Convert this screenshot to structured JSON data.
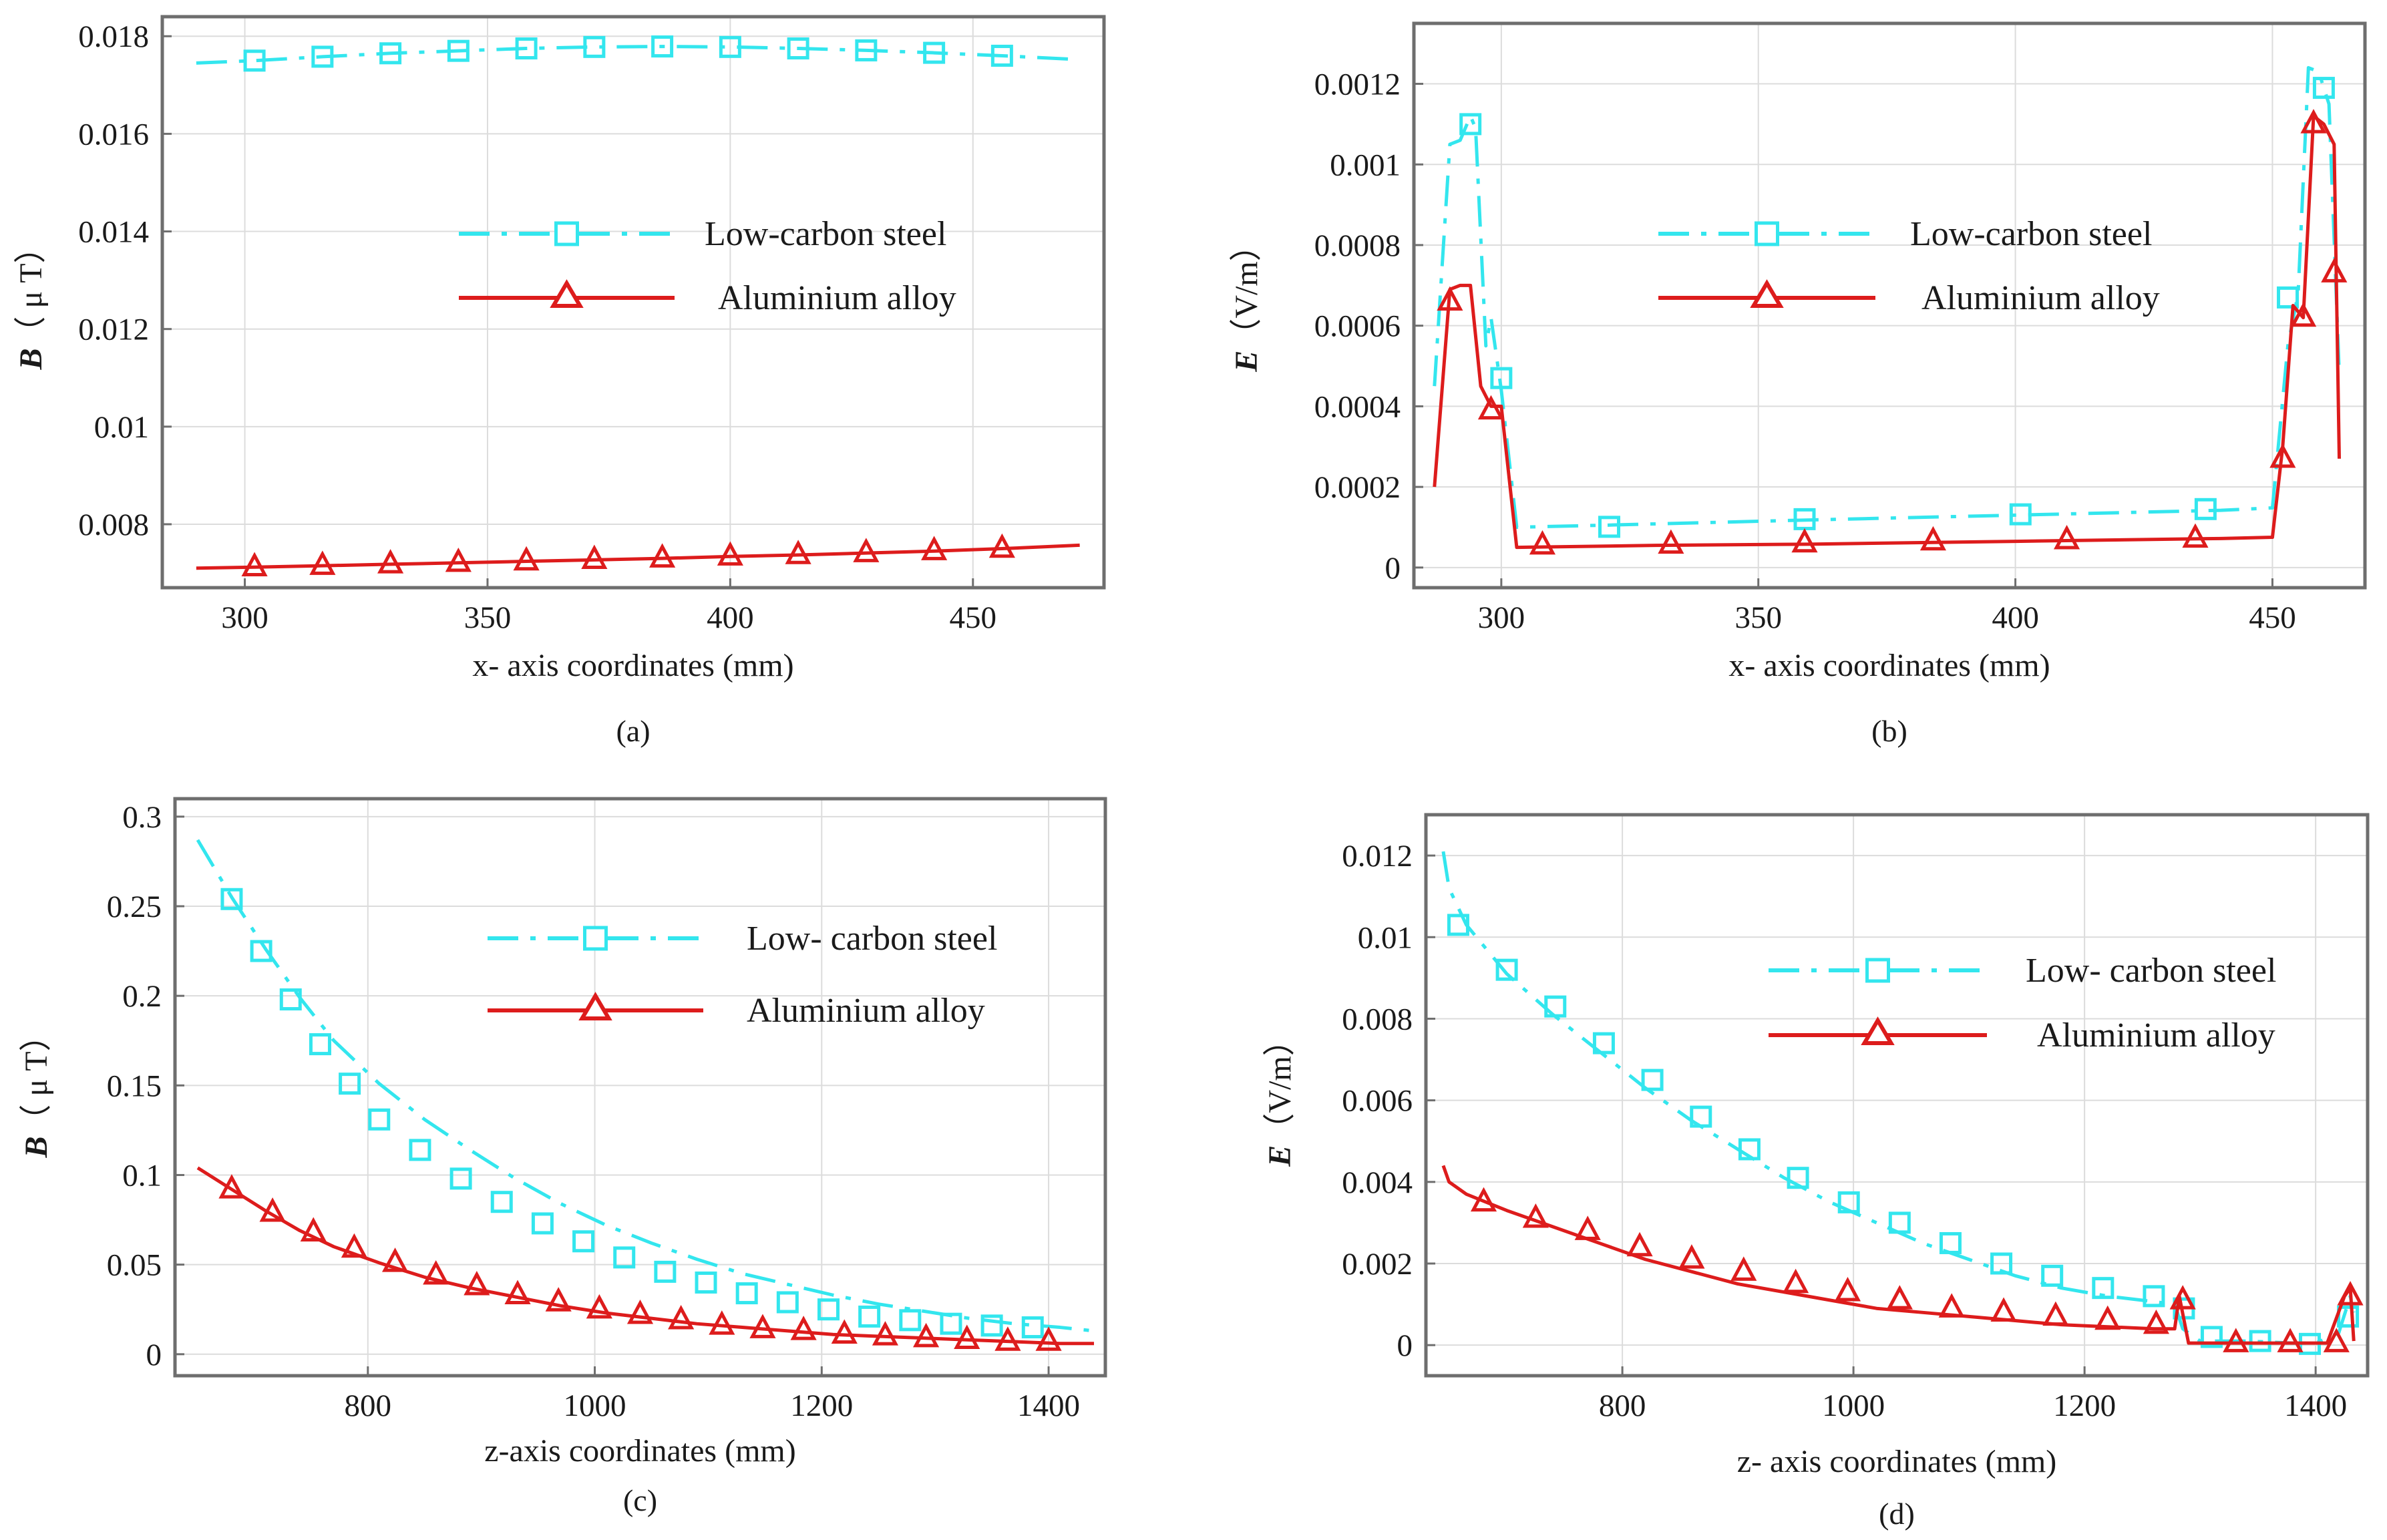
{
  "chart_data": [
    {
      "id": "a",
      "type": "line",
      "panel_label": "(a)",
      "xlabel": "x- axis coordinates (mm)",
      "ylabel_symbol": "B",
      "ylabel_unit": "（ μ T）",
      "xlim": [
        283,
        477
      ],
      "ylim": [
        0.0067,
        0.0184
      ],
      "xticks": [
        300,
        350,
        400,
        450
      ],
      "xtick_labels": [
        "300",
        "350",
        "400",
        "450"
      ],
      "yticks": [
        0.008,
        0.01,
        0.012,
        0.014,
        0.016,
        0.018
      ],
      "ytick_labels": [
        "0.008",
        "0.01",
        "0.012",
        "0.014",
        "0.016",
        "0.018"
      ],
      "grid": true,
      "legend_position": "center-right",
      "series": [
        {
          "name": "Low-carbon steel",
          "color": "#33e6ee",
          "style": "dashed",
          "marker": "square",
          "x": [
            290,
            302,
            316,
            330,
            344,
            358,
            372,
            386,
            400,
            414,
            428,
            442,
            456,
            472
          ],
          "y": [
            0.01745,
            0.0175,
            0.01758,
            0.01765,
            0.0177,
            0.01775,
            0.01778,
            0.01779,
            0.01778,
            0.01775,
            0.01771,
            0.01766,
            0.0176,
            0.01752
          ],
          "marker_x": [
            302,
            316,
            330,
            344,
            358,
            372,
            386,
            400,
            414,
            428,
            442,
            456
          ],
          "marker_y": [
            0.0175,
            0.01758,
            0.01765,
            0.0177,
            0.01775,
            0.01778,
            0.01779,
            0.01778,
            0.01775,
            0.01771,
            0.01766,
            0.0176
          ]
        },
        {
          "name": "Aluminium alloy",
          "color": "#dd1c1c",
          "style": "solid",
          "marker": "triangle",
          "x": [
            290,
            302,
            316,
            330,
            344,
            358,
            372,
            386,
            400,
            414,
            428,
            442,
            456,
            472
          ],
          "y": [
            0.0071,
            0.00712,
            0.00715,
            0.00718,
            0.00721,
            0.00724,
            0.00727,
            0.0073,
            0.00734,
            0.00737,
            0.00741,
            0.00745,
            0.0075,
            0.00757
          ],
          "marker_x": [
            302,
            316,
            330,
            344,
            358,
            372,
            386,
            400,
            414,
            428,
            442,
            456
          ],
          "marker_y": [
            0.00712,
            0.00715,
            0.00718,
            0.00721,
            0.00724,
            0.00727,
            0.0073,
            0.00734,
            0.00737,
            0.00741,
            0.00745,
            0.0075
          ]
        }
      ]
    },
    {
      "id": "b",
      "type": "line",
      "panel_label": "(b)",
      "xlabel": "x- axis coordinates (mm)",
      "ylabel_symbol": "E",
      "ylabel_unit": "（V/m）",
      "xlim": [
        283,
        468
      ],
      "ylim": [
        -5e-05,
        0.00135
      ],
      "xticks": [
        300,
        350,
        400,
        450
      ],
      "xtick_labels": [
        "300",
        "350",
        "400",
        "450"
      ],
      "yticks": [
        0,
        0.0002,
        0.0004,
        0.0006,
        0.0008,
        0.001,
        0.0012
      ],
      "ytick_labels": [
        "0",
        "0.0002",
        "0.0004",
        "0.0006",
        "0.0008",
        "0.001",
        "0.0012"
      ],
      "grid": true,
      "legend_position": "center-right",
      "series": [
        {
          "name": "Low-carbon  steel",
          "color": "#33e6ee",
          "style": "dashed",
          "marker": "square",
          "x": [
            287,
            290,
            292,
            294,
            295,
            297,
            298,
            300,
            303,
            320,
            360,
            400,
            440,
            450,
            453,
            455,
            457,
            459,
            461,
            463
          ],
          "y": [
            0.00045,
            0.00105,
            0.00106,
            0.00112,
            0.00109,
            0.00055,
            0.00062,
            0.00044,
            0.0001,
            0.000105,
            0.000118,
            0.00013,
            0.000142,
            0.000148,
            0.00055,
            0.00068,
            0.00124,
            0.00123,
            0.00115,
            0.00048
          ],
          "marker_x": [
            294,
            300,
            321,
            359,
            401,
            437,
            453,
            460
          ],
          "marker_y": [
            0.0011,
            0.00047,
            0.000101,
            0.00012,
            0.000132,
            0.000145,
            0.00067,
            0.00119
          ]
        },
        {
          "name": "Aluminium alloy",
          "color": "#dd1c1c",
          "style": "solid",
          "marker": "triangle",
          "x": [
            287,
            290,
            292,
            294,
            296,
            298,
            300,
            303,
            330,
            360,
            400,
            440,
            450,
            452,
            454,
            456,
            458,
            460,
            462,
            463
          ],
          "y": [
            0.0002,
            0.00069,
            0.0007,
            0.0007,
            0.00045,
            0.0004,
            0.0004,
            5e-05,
            5.5e-05,
            5.8e-05,
            6.5e-05,
            7.2e-05,
            7.5e-05,
            0.0003,
            0.00065,
            0.00062,
            0.00112,
            0.0011,
            0.00105,
            0.00027
          ],
          "marker_x": [
            290,
            298,
            308,
            333,
            359,
            384,
            410,
            435,
            452,
            456,
            458,
            462
          ],
          "marker_y": [
            0.00066,
            0.00039,
            5.5e-05,
            5.7e-05,
            6e-05,
            6.5e-05,
            6.8e-05,
            7.2e-05,
            0.00027,
            0.00062,
            0.0011,
            0.00073
          ]
        }
      ]
    },
    {
      "id": "c",
      "type": "line",
      "panel_label": "(c)",
      "xlabel": "z-axis coordinates (mm)",
      "ylabel_symbol": "B",
      "ylabel_unit": "（ μ T）",
      "xlim": [
        630,
        1450
      ],
      "ylim": [
        -0.012,
        0.31
      ],
      "xticks": [
        800,
        1000,
        1200,
        1400
      ],
      "xtick_labels": [
        "800",
        "1000",
        "1200",
        "1400"
      ],
      "yticks": [
        0,
        0.05,
        0.1,
        0.15,
        0.2,
        0.25,
        0.3
      ],
      "ytick_labels": [
        "0",
        "0.05",
        "0.1",
        "0.15",
        "0.2",
        "0.25",
        "0.3"
      ],
      "grid": true,
      "legend_position": "top-right",
      "series": [
        {
          "name": "Low- carbon steel",
          "color": "#33e6ee",
          "style": "dashed",
          "marker": "square",
          "x": [
            650,
            680,
            710,
            740,
            770,
            810,
            850,
            890,
            930,
            970,
            1010,
            1050,
            1090,
            1130,
            1170,
            1210,
            1250,
            1290,
            1330,
            1370,
            1410,
            1440
          ],
          "y": [
            0.287,
            0.255,
            0.226,
            0.199,
            0.175,
            0.151,
            0.131,
            0.114,
            0.098,
            0.084,
            0.072,
            0.062,
            0.053,
            0.045,
            0.039,
            0.033,
            0.028,
            0.024,
            0.02,
            0.017,
            0.015,
            0.013
          ],
          "marker_x": [
            680,
            706,
            732,
            758,
            784,
            810,
            846,
            882,
            918,
            954,
            990,
            1026,
            1062,
            1098,
            1134,
            1170,
            1206,
            1242,
            1278,
            1314,
            1350,
            1386
          ],
          "marker_y": [
            0.254,
            0.225,
            0.198,
            0.173,
            0.151,
            0.131,
            0.114,
            0.098,
            0.085,
            0.073,
            0.063,
            0.054,
            0.046,
            0.04,
            0.034,
            0.029,
            0.025,
            0.021,
            0.019,
            0.017,
            0.016,
            0.015
          ]
        },
        {
          "name": "Aluminium alloy",
          "color": "#dd1c1c",
          "style": "solid",
          "marker": "triangle",
          "x": [
            650,
            680,
            710,
            740,
            770,
            810,
            850,
            890,
            930,
            970,
            1010,
            1050,
            1090,
            1130,
            1170,
            1210,
            1250,
            1290,
            1330,
            1370,
            1410,
            1440
          ],
          "y": [
            0.104,
            0.092,
            0.08,
            0.069,
            0.06,
            0.051,
            0.043,
            0.037,
            0.032,
            0.027,
            0.023,
            0.02,
            0.017,
            0.015,
            0.013,
            0.011,
            0.01,
            0.009,
            0.008,
            0.007,
            0.006,
            0.006
          ],
          "marker_x": [
            680,
            716,
            752,
            788,
            824,
            860,
            896,
            932,
            968,
            1004,
            1040,
            1076,
            1112,
            1148,
            1184,
            1220,
            1256,
            1292,
            1328,
            1364,
            1400
          ],
          "marker_y": [
            0.092,
            0.079,
            0.068,
            0.059,
            0.051,
            0.044,
            0.038,
            0.033,
            0.029,
            0.025,
            0.022,
            0.019,
            0.016,
            0.014,
            0.013,
            0.011,
            0.01,
            0.009,
            0.008,
            0.007,
            0.007
          ]
        }
      ]
    },
    {
      "id": "d",
      "type": "line",
      "panel_label": "(d)",
      "xlabel": "z- axis coordinates (mm)",
      "ylabel_symbol": "E",
      "ylabel_unit": "（V/m）",
      "xlim": [
        630,
        1445
      ],
      "ylim": [
        -0.00075,
        0.013
      ],
      "xticks": [
        800,
        1000,
        1200,
        1400
      ],
      "xtick_labels": [
        "800",
        "1000",
        "1200",
        "1400"
      ],
      "yticks": [
        0,
        0.002,
        0.004,
        0.006,
        0.008,
        0.01,
        0.012
      ],
      "ytick_labels": [
        "0",
        "0.002",
        "0.004",
        "0.006",
        "0.008",
        "0.01",
        "0.012"
      ],
      "grid": true,
      "legend_position": "top-right",
      "series": [
        {
          "name": "Low- carbon steel",
          "color": "#33e6ee",
          "style": "dashed",
          "marker": "square",
          "x": [
            645,
            650,
            665,
            700,
            740,
            780,
            820,
            860,
            900,
            940,
            980,
            1020,
            1060,
            1100,
            1140,
            1180,
            1220,
            1250,
            1278,
            1285,
            1300,
            1340,
            1380,
            1400,
            1420,
            1430,
            1433
          ],
          "y": [
            0.0121,
            0.0112,
            0.0103,
            0.0091,
            0.0081,
            0.0072,
            0.0063,
            0.0055,
            0.0048,
            0.0041,
            0.0035,
            0.003,
            0.0025,
            0.0021,
            0.0017,
            0.0014,
            0.0012,
            0.0011,
            0.001,
            0.0004,
            0.0001,
            0.0001,
            5e-05,
            5e-05,
            0.0003,
            0.0012,
            0.0008
          ],
          "marker_x": [
            658,
            700,
            742,
            784,
            826,
            868,
            910,
            952,
            996,
            1040,
            1084,
            1128,
            1172,
            1216,
            1260,
            1286,
            1310,
            1352,
            1395,
            1428
          ],
          "marker_y": [
            0.0103,
            0.0092,
            0.0083,
            0.0074,
            0.0065,
            0.0056,
            0.0048,
            0.0041,
            0.0035,
            0.003,
            0.0025,
            0.002,
            0.0017,
            0.0014,
            0.0012,
            0.0009,
            0.0002,
            0.0001,
            3e-05,
            0.0007
          ]
        },
        {
          "name": "Aluminium alloy",
          "color": "#dd1c1c",
          "style": "solid",
          "marker": "triangle",
          "x": [
            645,
            650,
            665,
            700,
            740,
            780,
            820,
            860,
            900,
            940,
            980,
            1020,
            1060,
            1100,
            1140,
            1180,
            1220,
            1260,
            1278,
            1282,
            1290,
            1340,
            1380,
            1410,
            1425,
            1430,
            1433
          ],
          "y": [
            0.0044,
            0.004,
            0.0037,
            0.0033,
            0.0029,
            0.0025,
            0.0021,
            0.0018,
            0.0015,
            0.0013,
            0.0011,
            0.0009,
            0.0008,
            0.0007,
            0.0006,
            0.0005,
            0.00045,
            0.0004,
            0.0004,
            0.0012,
            5e-05,
            5e-05,
            5e-05,
            5e-05,
            0.0012,
            0.0014,
            0.0001
          ],
          "marker_x": [
            680,
            725,
            770,
            815,
            860,
            905,
            950,
            995,
            1040,
            1085,
            1130,
            1175,
            1220,
            1262,
            1285,
            1331,
            1378,
            1418,
            1430
          ],
          "marker_y": [
            0.0035,
            0.0031,
            0.0028,
            0.0024,
            0.0021,
            0.0018,
            0.0015,
            0.0013,
            0.0011,
            0.0009,
            0.0008,
            0.0007,
            0.0006,
            0.0005,
            0.0011,
            5e-05,
            5e-05,
            5e-05,
            0.0012
          ]
        }
      ]
    }
  ]
}
